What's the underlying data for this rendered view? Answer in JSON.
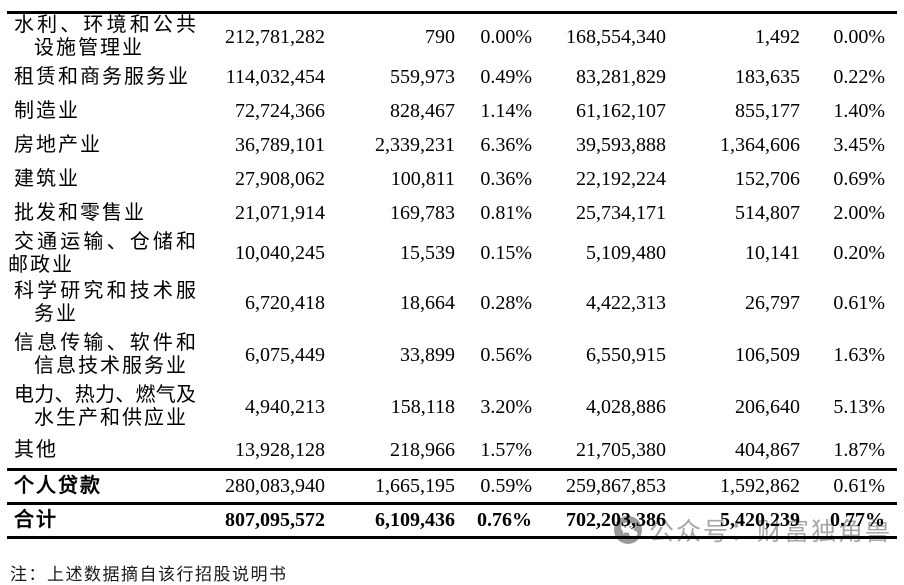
{
  "table": {
    "rows": [
      {
        "label_lines": [
          "水利、环境和公共",
          "设施管理业"
        ],
        "indent2": true,
        "style": "normal",
        "values": [
          "212,781,282",
          "790",
          "0.00%",
          "168,554,340",
          "1,492",
          "0.00%"
        ]
      },
      {
        "label_lines": [
          "租赁和商务服务业"
        ],
        "style": "normal",
        "values": [
          "114,032,454",
          "559,973",
          "0.49%",
          "83,281,829",
          "183,635",
          "0.22%"
        ]
      },
      {
        "label_lines": [
          "制造业"
        ],
        "style": "normal",
        "values": [
          "72,724,366",
          "828,467",
          "1.14%",
          "61,162,107",
          "855,177",
          "1.40%"
        ]
      },
      {
        "label_lines": [
          "房地产业"
        ],
        "style": "normal",
        "values": [
          "36,789,101",
          "2,339,231",
          "6.36%",
          "39,593,888",
          "1,364,606",
          "3.45%"
        ]
      },
      {
        "label_lines": [
          "建筑业"
        ],
        "style": "normal",
        "values": [
          "27,908,062",
          "100,811",
          "0.36%",
          "22,192,224",
          "152,706",
          "0.69%"
        ]
      },
      {
        "label_lines": [
          "批发和零售业"
        ],
        "style": "normal",
        "values": [
          "21,071,914",
          "169,783",
          "0.81%",
          "25,734,171",
          "514,807",
          "2.00%"
        ]
      },
      {
        "label_lines": [
          "交通运输、仓储和",
          "邮政业"
        ],
        "indent2": false,
        "style": "normal",
        "values": [
          "10,040,245",
          "15,539",
          "0.15%",
          "5,109,480",
          "10,141",
          "0.20%"
        ]
      },
      {
        "label_lines": [
          "科学研究和技术服",
          "务业"
        ],
        "indent2": true,
        "style": "normal",
        "values": [
          "6,720,418",
          "18,664",
          "0.28%",
          "4,422,313",
          "26,797",
          "0.61%"
        ]
      },
      {
        "label_lines": [
          "信息传输、软件和",
          "信息技术服务业"
        ],
        "indent2": true,
        "style": "normal",
        "values": [
          "6,075,449",
          "33,899",
          "0.56%",
          "6,550,915",
          "106,509",
          "1.63%"
        ]
      },
      {
        "label_lines": [
          "电力、热力、燃气及",
          "水生产和供应业"
        ],
        "indent2": true,
        "style": "normal",
        "values": [
          "4,940,213",
          "158,118",
          "3.20%",
          "4,028,886",
          "206,640",
          "5.13%"
        ]
      },
      {
        "label_lines": [
          "其他"
        ],
        "style": "normal",
        "values": [
          "13,928,128",
          "218,966",
          "1.57%",
          "21,705,380",
          "404,867",
          "1.87%"
        ]
      },
      {
        "label_lines": [
          "个人贷款"
        ],
        "style": "subtotal",
        "values": [
          "280,083,940",
          "1,665,195",
          "0.59%",
          "259,867,853",
          "1,592,862",
          "0.61%"
        ]
      },
      {
        "label_lines": [
          "合计"
        ],
        "style": "total",
        "values": [
          "807,095,572",
          "6,109,436",
          "0.76%",
          "702,203,386",
          "5,420,239",
          "0.77%"
        ]
      }
    ]
  },
  "watermark": {
    "icon": "wechat-icon",
    "text": "公众号：财富独角兽",
    "color": "#a7a7a7"
  },
  "footnote_partial": "注：上述数据摘自该行招股说明书"
}
